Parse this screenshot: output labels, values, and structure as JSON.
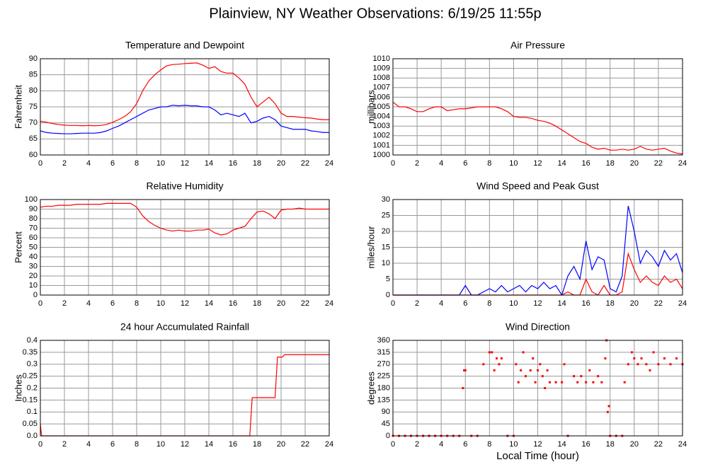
{
  "title": "Plainview, NY Weather Observations: 6/19/25 11:55p",
  "chart_data": [
    {
      "type": "line",
      "title": "Temperature and Dewpoint",
      "ylabel": "Fahrenheit",
      "x": [
        0,
        0.5,
        1,
        1.5,
        2,
        2.5,
        3,
        3.5,
        4,
        4.5,
        5,
        5.5,
        6,
        6.5,
        7,
        7.5,
        8,
        8.5,
        9,
        9.5,
        10,
        10.5,
        11,
        11.5,
        12,
        12.5,
        13,
        13.5,
        14,
        14.5,
        15,
        15.5,
        16,
        16.5,
        17,
        17.5,
        18,
        18.5,
        19,
        19.5,
        20,
        20.5,
        21,
        21.5,
        22,
        22.5,
        23,
        23.5,
        24
      ],
      "series": [
        {
          "color": "#ff0000",
          "values": [
            70.5,
            70.2,
            69.8,
            69.5,
            69.3,
            69.2,
            69.2,
            69.1,
            69.2,
            69.1,
            69.2,
            69.5,
            70.2,
            71,
            72,
            73.5,
            76,
            80,
            83,
            85,
            86.5,
            87.8,
            88.2,
            88.3,
            88.5,
            88.6,
            88.7,
            88,
            87,
            87.5,
            86,
            85.5,
            85.5,
            84,
            82,
            78,
            75,
            76.5,
            78,
            76,
            73,
            72,
            72,
            71.8,
            71.6,
            71.5,
            71.2,
            71,
            71
          ]
        },
        {
          "color": "#0000ff",
          "values": [
            67.5,
            67,
            66.8,
            66.7,
            66.6,
            66.6,
            66.7,
            66.8,
            66.8,
            66.8,
            67,
            67.5,
            68.3,
            69,
            70,
            71,
            72,
            73,
            74,
            74.5,
            75,
            75,
            75.5,
            75.3,
            75.5,
            75.3,
            75.3,
            75,
            75,
            74,
            72.5,
            73,
            72.5,
            72,
            73,
            70,
            70.5,
            71.5,
            72,
            71,
            69,
            68.5,
            68,
            68,
            68,
            67.5,
            67.3,
            67,
            67
          ]
        }
      ],
      "xlim": [
        0,
        24
      ],
      "xticks": [
        0,
        2,
        4,
        6,
        8,
        10,
        12,
        14,
        16,
        18,
        20,
        22,
        24
      ],
      "ylim": [
        60,
        90
      ],
      "yticks": [
        60,
        65,
        70,
        75,
        80,
        85,
        90
      ],
      "grid": true
    },
    {
      "type": "line",
      "title": "Air Pressure",
      "ylabel": "millibars",
      "x": [
        0,
        0.5,
        1,
        1.5,
        2,
        2.5,
        3,
        3.5,
        4,
        4.5,
        5,
        5.5,
        6,
        6.5,
        7,
        7.5,
        8,
        8.5,
        9,
        9.5,
        10,
        10.5,
        11,
        11.5,
        12,
        12.5,
        13,
        13.5,
        14,
        14.5,
        15,
        15.5,
        16,
        16.5,
        17,
        17.5,
        18,
        18.5,
        19,
        19.5,
        20,
        20.5,
        21,
        21.5,
        22,
        22.5,
        23,
        23.5,
        24
      ],
      "series": [
        {
          "color": "#ff0000",
          "values": [
            1005.5,
            1005,
            1005,
            1004.8,
            1004.5,
            1004.5,
            1004.8,
            1005,
            1005,
            1004.6,
            1004.7,
            1004.8,
            1004.8,
            1004.9,
            1005,
            1005,
            1005,
            1005,
            1004.8,
            1004.5,
            1004,
            1003.9,
            1003.9,
            1003.8,
            1003.6,
            1003.5,
            1003.3,
            1003,
            1002.6,
            1002.2,
            1001.8,
            1001.4,
            1001.2,
            1000.8,
            1000.6,
            1000.7,
            1000.5,
            1000.5,
            1000.6,
            1000.5,
            1000.6,
            1000.9,
            1000.6,
            1000.5,
            1000.6,
            1000.7,
            1000.4,
            1000.2,
            1000.1
          ]
        }
      ],
      "xlim": [
        0,
        24
      ],
      "xticks": [
        0,
        2,
        4,
        6,
        8,
        10,
        12,
        14,
        16,
        18,
        20,
        22,
        24
      ],
      "ylim": [
        1000,
        1010
      ],
      "yticks": [
        1000,
        1001,
        1002,
        1003,
        1004,
        1005,
        1006,
        1007,
        1008,
        1009,
        1010
      ],
      "grid": true
    },
    {
      "type": "line",
      "title": "Relative Humidity",
      "ylabel": "Percent",
      "x": [
        0,
        0.5,
        1,
        1.5,
        2,
        2.5,
        3,
        3.5,
        4,
        4.5,
        5,
        5.5,
        6,
        6.5,
        7,
        7.5,
        8,
        8.5,
        9,
        9.5,
        10,
        10.5,
        11,
        11.5,
        12,
        12.5,
        13,
        13.5,
        14,
        14.5,
        15,
        15.5,
        16,
        16.5,
        17,
        17.5,
        18,
        18.5,
        19,
        19.5,
        20,
        20.5,
        21,
        21.5,
        22,
        22.5,
        23,
        23.5,
        24
      ],
      "series": [
        {
          "color": "#ff0000",
          "values": [
            92,
            93,
            93,
            94,
            94,
            94,
            95,
            95,
            95,
            95,
            95,
            96,
            96,
            96,
            96,
            96,
            92,
            83,
            77,
            73,
            70,
            68,
            67,
            68,
            67,
            67,
            68,
            68,
            69,
            65,
            63,
            64,
            68,
            70,
            72,
            80,
            87,
            88,
            85,
            80,
            89,
            90,
            90,
            91,
            90,
            90,
            90,
            90,
            90
          ]
        }
      ],
      "xlim": [
        0,
        24
      ],
      "xticks": [
        0,
        2,
        4,
        6,
        8,
        10,
        12,
        14,
        16,
        18,
        20,
        22,
        24
      ],
      "ylim": [
        0,
        100
      ],
      "yticks": [
        0,
        10,
        20,
        30,
        40,
        50,
        60,
        70,
        80,
        90,
        100
      ],
      "grid": true
    },
    {
      "type": "line",
      "title": "Wind Speed and Peak Gust",
      "ylabel": "miles/hour",
      "x": [
        0,
        0.5,
        1,
        1.5,
        2,
        2.5,
        3,
        3.5,
        4,
        4.5,
        5,
        5.5,
        6,
        6.5,
        7,
        7.5,
        8,
        8.5,
        9,
        9.5,
        10,
        10.5,
        11,
        11.5,
        12,
        12.5,
        13,
        13.5,
        14,
        14.5,
        15,
        15.5,
        16,
        16.5,
        17,
        17.5,
        18,
        18.5,
        19,
        19.5,
        20,
        20.5,
        21,
        21.5,
        22,
        22.5,
        23,
        23.5,
        24
      ],
      "series": [
        {
          "color": "#0000ff",
          "values": [
            0,
            0,
            0,
            0,
            0,
            0,
            0,
            0,
            0,
            0,
            0,
            0,
            3,
            0,
            0,
            1,
            2,
            1,
            3,
            1,
            2,
            3,
            1,
            3,
            2,
            4,
            2,
            3,
            0,
            6,
            9,
            5,
            17,
            8,
            12,
            11,
            2,
            1,
            6,
            28,
            20,
            10,
            14,
            12,
            9,
            14,
            11,
            13,
            7
          ]
        },
        {
          "color": "#ff0000",
          "values": [
            0,
            0,
            0,
            0,
            0,
            0,
            0,
            0,
            0,
            0,
            0,
            0,
            0,
            0,
            0,
            0,
            0,
            0,
            0,
            0,
            0,
            0,
            0,
            0,
            0,
            0,
            0,
            0,
            0,
            1,
            0,
            0,
            5,
            1,
            0,
            3,
            0,
            0,
            1,
            13,
            8,
            4,
            6,
            4,
            3,
            6,
            4,
            5,
            2
          ]
        }
      ],
      "xlim": [
        0,
        24
      ],
      "xticks": [
        0,
        2,
        4,
        6,
        8,
        10,
        12,
        14,
        16,
        18,
        20,
        22,
        24
      ],
      "ylim": [
        0,
        30
      ],
      "yticks": [
        0,
        5,
        10,
        15,
        20,
        25,
        30
      ],
      "grid": true
    },
    {
      "type": "line",
      "title": "24 hour Accumulated Rainfall",
      "ylabel": "Inches",
      "x": [
        0,
        0.1,
        17.4,
        17.6,
        19.5,
        19.7,
        20.1,
        20.3,
        24
      ],
      "series": [
        {
          "color": "#ff0000",
          "values": [
            0.05,
            0,
            0,
            0.16,
            0.16,
            0.33,
            0.33,
            0.34,
            0.34
          ]
        }
      ],
      "xlim": [
        0,
        24
      ],
      "xticks": [
        0,
        2,
        4,
        6,
        8,
        10,
        12,
        14,
        16,
        18,
        20,
        22,
        24
      ],
      "ylim": [
        0,
        0.4
      ],
      "yticks": [
        {
          "value": 0,
          "label": "0.0"
        },
        0.05,
        0.1,
        0.15,
        0.2,
        0.25,
        0.3,
        0.35,
        0.4
      ],
      "grid": true
    },
    {
      "type": "scatter",
      "title": "Wind Direction",
      "ylabel": "degrees",
      "xlabel": "Local Time (hour)",
      "x": [
        0,
        0.5,
        1,
        1.5,
        2,
        2.5,
        3,
        3.5,
        4,
        4.5,
        5,
        5.5,
        5.8,
        5.9,
        6,
        6.5,
        7,
        7.5,
        8,
        8.2,
        8.4,
        8.6,
        8.8,
        9,
        9.5,
        10,
        10.2,
        10.4,
        10.6,
        10.8,
        11,
        11.4,
        11.6,
        11.8,
        12,
        12.2,
        12.4,
        12.6,
        12.8,
        13,
        13.5,
        14,
        14.2,
        14.5,
        15,
        15.3,
        15.6,
        16,
        16.3,
        16.6,
        17,
        17.3,
        17.6,
        17.7,
        17.8,
        17.9,
        18,
        18.5,
        19,
        19.2,
        19.5,
        19.8,
        20,
        20.3,
        20.6,
        21,
        21.3,
        21.6,
        22,
        22.5,
        23,
        23.5,
        24
      ],
      "series": [
        {
          "color": "#ff0000",
          "values": [
            0,
            0,
            0,
            0,
            0,
            0,
            0,
            0,
            0,
            0,
            0,
            0,
            180,
            247,
            247,
            0,
            0,
            270,
            315,
            315,
            247,
            292,
            270,
            292,
            0,
            0,
            270,
            202,
            247,
            315,
            225,
            247,
            292,
            202,
            247,
            270,
            225,
            180,
            247,
            202,
            202,
            202,
            270,
            0,
            225,
            202,
            225,
            202,
            247,
            202,
            225,
            202,
            292,
            360,
            90,
            112,
            0,
            0,
            0,
            202,
            270,
            315,
            292,
            270,
            292,
            270,
            247,
            315,
            270,
            292,
            270,
            292,
            270
          ]
        }
      ],
      "xlim": [
        0,
        24
      ],
      "xticks": [
        0,
        2,
        4,
        6,
        8,
        10,
        12,
        14,
        16,
        18,
        20,
        22,
        24
      ],
      "ylim": [
        0,
        360
      ],
      "yticks": [
        0,
        45,
        90,
        135,
        180,
        225,
        270,
        315,
        360
      ],
      "grid": true
    }
  ]
}
